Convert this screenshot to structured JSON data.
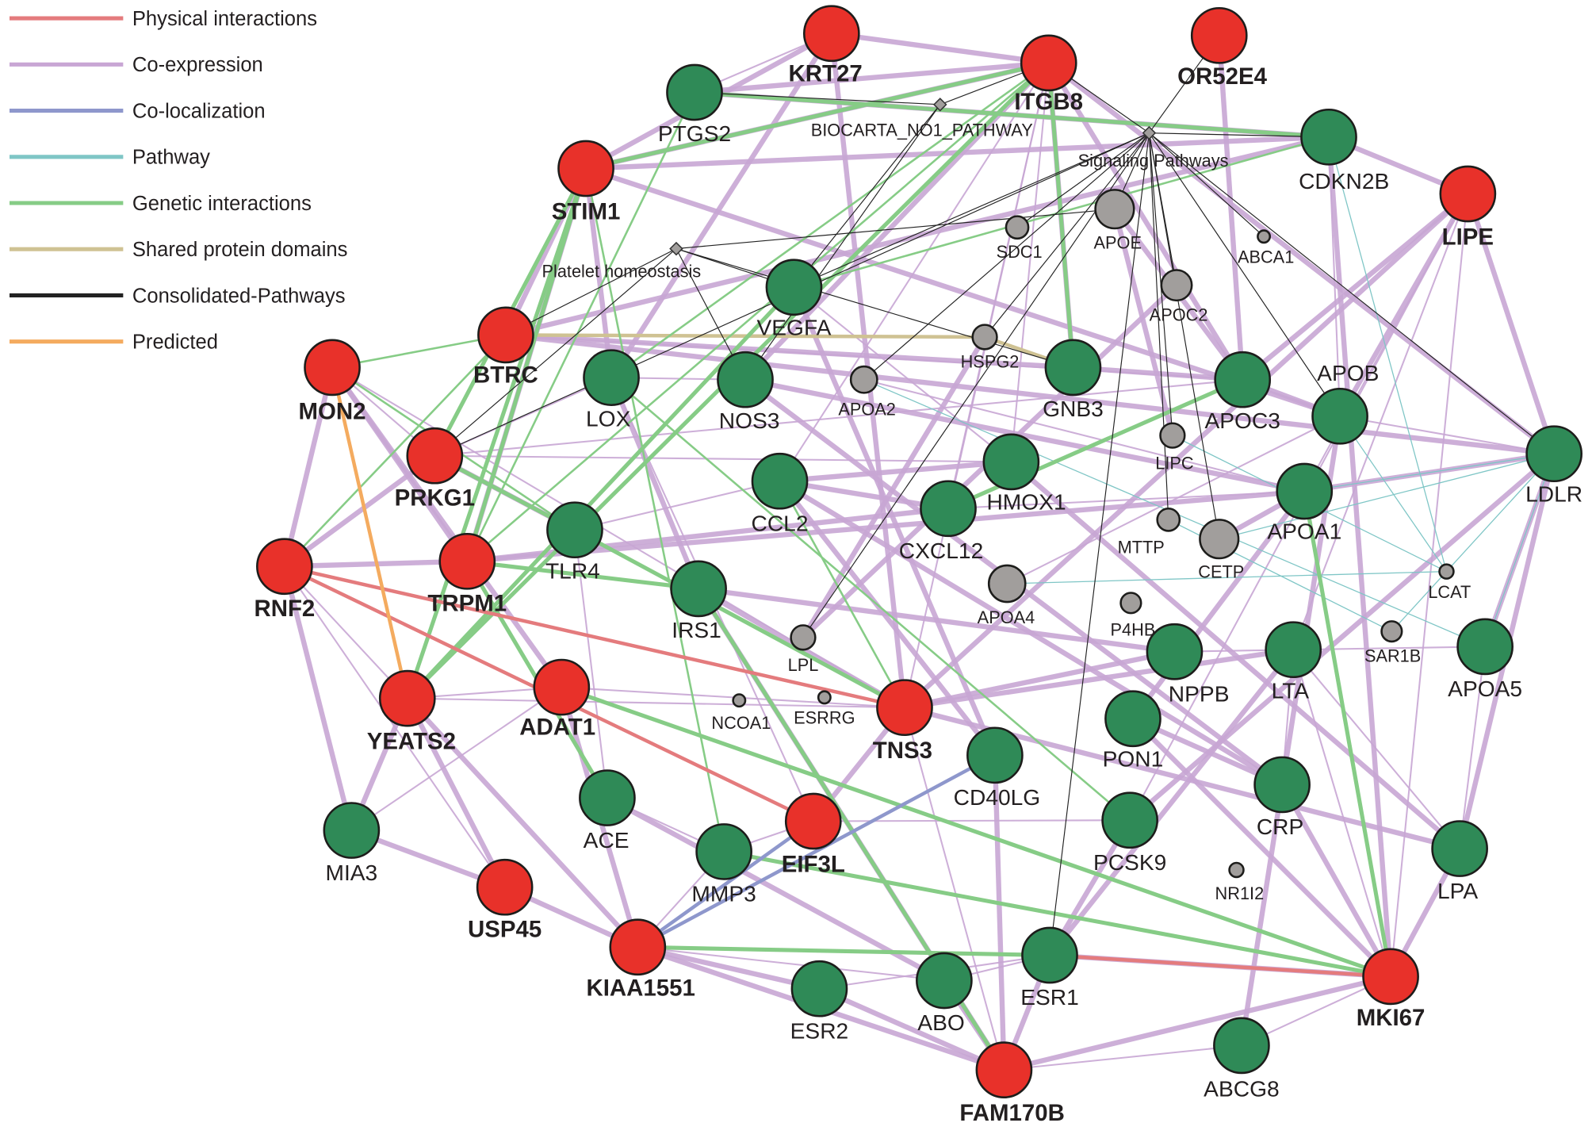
{
  "legend": [
    {
      "label": "Physical interactions",
      "type": "physical",
      "color": "#e47b7d"
    },
    {
      "label": "Co-expression",
      "type": "coexpression",
      "color": "#c8a6d4"
    },
    {
      "label": "Co-localization",
      "type": "colocalization",
      "color": "#8e97cc"
    },
    {
      "label": "Pathway",
      "type": "pathway",
      "color": "#7fc6c6"
    },
    {
      "label": "Genetic interactions",
      "type": "genetic",
      "color": "#86cc86"
    },
    {
      "label": "Shared protein domains",
      "type": "shared",
      "color": "#cfc293"
    },
    {
      "label": "Consolidated-Pathways",
      "type": "consolidated",
      "color": "#222222"
    },
    {
      "label": "Predicted",
      "type": "predicted",
      "color": "#f4ab5f"
    }
  ],
  "node_colors": {
    "query": "#e8312a",
    "related": "#2f8a57",
    "attribute": "#a19e9c",
    "pathway": "#a19e9c"
  },
  "nodes": [
    {
      "name": "KRT27",
      "type": "query"
    },
    {
      "name": "ITGB8",
      "type": "query"
    },
    {
      "name": "OR52E4",
      "type": "query"
    },
    {
      "name": "STIM1",
      "type": "query"
    },
    {
      "name": "LIPE",
      "type": "query"
    },
    {
      "name": "BTRC",
      "type": "query"
    },
    {
      "name": "MON2",
      "type": "query"
    },
    {
      "name": "PRKG1",
      "type": "query"
    },
    {
      "name": "TRPM1",
      "type": "query"
    },
    {
      "name": "RNF2",
      "type": "query"
    },
    {
      "name": "YEATS2",
      "type": "query"
    },
    {
      "name": "ADAT1",
      "type": "query"
    },
    {
      "name": "TNS3",
      "type": "query"
    },
    {
      "name": "EIF3L",
      "type": "query"
    },
    {
      "name": "USP45",
      "type": "query"
    },
    {
      "name": "KIAA1551",
      "type": "query"
    },
    {
      "name": "FAM170B",
      "type": "query"
    },
    {
      "name": "MKI67",
      "type": "query"
    },
    {
      "name": "PTGS2",
      "type": "related"
    },
    {
      "name": "CDKN2B",
      "type": "related"
    },
    {
      "name": "VEGFA",
      "type": "related"
    },
    {
      "name": "LOX",
      "type": "related"
    },
    {
      "name": "NOS3",
      "type": "related"
    },
    {
      "name": "GNB3",
      "type": "related"
    },
    {
      "name": "APOC3",
      "type": "related"
    },
    {
      "name": "APOB",
      "type": "related"
    },
    {
      "name": "LDLR",
      "type": "related"
    },
    {
      "name": "HMOX1",
      "type": "related"
    },
    {
      "name": "CCL2",
      "type": "related"
    },
    {
      "name": "CXCL12",
      "type": "related"
    },
    {
      "name": "APOA1",
      "type": "related"
    },
    {
      "name": "TLR4",
      "type": "related"
    },
    {
      "name": "IRS1",
      "type": "related"
    },
    {
      "name": "NPPB",
      "type": "related"
    },
    {
      "name": "LTA",
      "type": "related"
    },
    {
      "name": "APOA5",
      "type": "related"
    },
    {
      "name": "PON1",
      "type": "related"
    },
    {
      "name": "CD40LG",
      "type": "related"
    },
    {
      "name": "CRP",
      "type": "related"
    },
    {
      "name": "PCSK9",
      "type": "related"
    },
    {
      "name": "ACE",
      "type": "related"
    },
    {
      "name": "MIA3",
      "type": "related"
    },
    {
      "name": "MMP3",
      "type": "related"
    },
    {
      "name": "LPA",
      "type": "related"
    },
    {
      "name": "ESR1",
      "type": "related"
    },
    {
      "name": "ABO",
      "type": "related"
    },
    {
      "name": "ESR2",
      "type": "related"
    },
    {
      "name": "ABCG8",
      "type": "related"
    },
    {
      "name": "SDC1",
      "type": "attribute"
    },
    {
      "name": "APOE",
      "type": "attribute"
    },
    {
      "name": "ABCA1",
      "type": "attribute"
    },
    {
      "name": "APOC2",
      "type": "attribute"
    },
    {
      "name": "HSPG2",
      "type": "attribute"
    },
    {
      "name": "APOA2",
      "type": "attribute"
    },
    {
      "name": "LIPC",
      "type": "attribute"
    },
    {
      "name": "MTTP",
      "type": "attribute"
    },
    {
      "name": "CETP",
      "type": "attribute"
    },
    {
      "name": "APOA4",
      "type": "attribute"
    },
    {
      "name": "P4HB",
      "type": "attribute"
    },
    {
      "name": "LCAT",
      "type": "attribute"
    },
    {
      "name": "SAR1B",
      "type": "attribute"
    },
    {
      "name": "LPL",
      "type": "attribute"
    },
    {
      "name": "NCOA1",
      "type": "attribute"
    },
    {
      "name": "ESRRG",
      "type": "attribute"
    },
    {
      "name": "NR1I2",
      "type": "attribute"
    },
    {
      "name": "BIOCARTA_NO1_PATHWAY",
      "type": "pathway"
    },
    {
      "name": "Signaling Pathways",
      "type": "pathway"
    },
    {
      "name": "Platelet homeostasis",
      "type": "pathway"
    }
  ],
  "edges": {
    "coexpression": [
      "KRT27-STIM1",
      "KRT27-PTGS2",
      "KRT27-ITGB8",
      "KRT27-LOX",
      "ITGB8-STIM1",
      "ITGB8-PTGS2",
      "ITGB8-NOS3",
      "ITGB8-CCL2",
      "ITGB8-CXCL12",
      "ITGB8-GNB3",
      "ITGB8-APOC3",
      "ITGB8-HMOX1",
      "ITGB8-TNS3",
      "STIM1-BTRC",
      "STIM1-LOX",
      "STIM1-CDKN2B",
      "STIM1-PRKG1",
      "STIM1-TRPM1",
      "MON2-PRKG1",
      "MON2-RNF2",
      "MON2-TRPM1",
      "MON2-ADAT1",
      "MON2-TNS3",
      "RNF2-YEATS2",
      "RNF2-MIA3",
      "RNF2-PRKG1",
      "RNF2-USP45",
      "RNF2-TRPM1",
      "YEATS2-MIA3",
      "YEATS2-ADAT1",
      "YEATS2-TNS3",
      "YEATS2-USP45",
      "YEATS2-KIAA1551",
      "ADAT1-TNS3",
      "ADAT1-KIAA1551",
      "USP45-KIAA1551",
      "USP45-MIA3",
      "KIAA1551-FAM170B",
      "KIAA1551-ESR2",
      "KIAA1551-ABO",
      "FAM170B-ESR1",
      "FAM170B-ABO",
      "FAM170B-ESR2",
      "FAM170B-ABCG8",
      "FAM170B-MKI67",
      "FAM170B-TNS3",
      "FAM170B-CD40LG",
      "FAM170B-IRS1",
      "MKI67-ABCG8",
      "MKI67-LPA",
      "MKI67-LIPE",
      "MKI67-LTA",
      "MKI67-PON1",
      "MKI67-ESR1",
      "MKI67-CRP",
      "LIPE-APOB",
      "LIPE-LDLR",
      "LIPE-CDKN2B",
      "LIPE-APOA1",
      "LIPE-LTA",
      "LIPE-PCSK9",
      "LIPE-APOC3",
      "LIPE-TNS3",
      "CDKN2B-BTRC",
      "CDKN2B-PTGS2",
      "CDKN2B-APOB",
      "CDKN2B-MKI67",
      "TNS3-NPPB",
      "TNS3-LTA",
      "TNS3-EIF3L",
      "TNS3-CCL2",
      "TNS3-IRS1",
      "TNS3-LPA",
      "TNS3-PRKG1",
      "EIF3L-KIAA1551",
      "EIF3L-MMP3",
      "EIF3L-PCSK9",
      "EIF3L-LOX",
      "PRKG1-APOC3",
      "PRKG1-LOX",
      "PRKG1-HMOX1",
      "PRKG1-TLR4",
      "TRPM1-CXCL12",
      "TRPM1-APOA1",
      "BTRC-LDLR",
      "BTRC-GNB3",
      "BTRC-APOC3",
      "LOX-NOS3",
      "NOS3-APOA1",
      "VEGFA-HMOX1",
      "CCL2-CXCL12",
      "CCL2-HMOX1",
      "CXCL12-APOA1",
      "GNB3-APOC3",
      "APOC3-APOB",
      "APOB-LDLR",
      "APOA1-LDLR",
      "APOA5-LPA",
      "LPA-LTA",
      "PON1-CRP",
      "PCSK9-LDLR",
      "ESR1-ESR2",
      "ESR1-ABO",
      "ESR1-PCSK9",
      "ESR1-LTA",
      "ABO-ACE",
      "ACE-TLR4",
      "MMP3-ACE",
      "MMP3-KIAA1551",
      "MIA3-ADAT1",
      "IRS1-LOX",
      "NPPB-APOA5",
      "ITGB8-LDLR",
      "KRT27-TNS3",
      "STIM1-APOB",
      "OR52E4-APOC3",
      "APOE-APOC3",
      "APOA1-APOA2",
      "APOB-APOA4",
      "LPL-APOC2",
      "CETP-APOA1",
      "LIPC-APOE",
      "HSPG2-LPL",
      "NOS3-CRP",
      "CCL2-CRP",
      "HMOX1-LPA",
      "VEGFA-CD40LG",
      "IRS1-NPPB",
      "TLR4-CCL2",
      "ABCG8-APOB",
      "LDLR-LPA",
      "LDLR-APOA5",
      "CRP-LTA",
      "PON1-APOA1",
      "CD40LG-CCL2"
    ],
    "genetic": [
      "STIM1-PRKG1",
      "STIM1-TRPM1",
      "STIM1-YEATS2",
      "ITGB8-YEATS2",
      "ITGB8-TRPM1",
      "ITGB8-STIM1",
      "PTGS2-TRPM1",
      "CDKN2B-PTGS2",
      "CDKN2B-VEGFA",
      "MON2-BTRC",
      "MON2-TLR4",
      "PRKG1-TLR4",
      "TRPM1-IRS1",
      "YEATS2-VEGFA",
      "RNF2-BTRC",
      "TLR4-TNS3",
      "IRS1-FAM170B",
      "KIAA1551-ESR1",
      "MKI67-APOA1",
      "MMP3-MKI67",
      "TNS3-CCL2",
      "CXCL12-APOC3",
      "ACE-TRPM1",
      "LOX-PCSK9",
      "STIM1-MMP3",
      "ITGB8-LOX",
      "ADAT1-MKI67",
      "ITGB8-GNB3"
    ],
    "physical": [
      "RNF2-TNS3",
      "RNF2-EIF3L",
      "ESR1-MKI67"
    ],
    "colocalization": [
      "KIAA1551-EIF3L",
      "KIAA1551-CD40LG"
    ],
    "predicted": [
      "MON2-YEATS2"
    ],
    "shared": [
      "BTRC-HSPG2",
      "HSPG2-GNB3"
    ],
    "pathway": [
      "APOA1-LDLR",
      "CETP-LDLR",
      "APOA5-LDLR",
      "LCAT-APOB",
      "SAR1B-LDLR",
      "APOA4-LCAT",
      "APOA2-APOA5",
      "CDKN2B-LCAT",
      "LIPC-LCAT",
      "MTTP-SAR1B"
    ],
    "consolidated": [
      "Signaling Pathways-ITGB8",
      "Signaling Pathways-OR52E4",
      "Signaling Pathways-CDKN2B",
      "Signaling Pathways-APOE",
      "Signaling Pathways-SDC1",
      "Signaling Pathways-APOC2",
      "Signaling Pathways-HSPG2",
      "Signaling Pathways-ABCA1",
      "Signaling Pathways-LIPC",
      "Signaling Pathways-CETP",
      "Signaling Pathways-LDLR",
      "Signaling Pathways-VEGFA",
      "Signaling Pathways-MTTP",
      "Signaling Pathways-APOA2",
      "Signaling Pathways-LPL",
      "Signaling Pathways-ESR1",
      "Signaling Pathways-APOB",
      "Signaling Pathways-PRKG1",
      "BIOCARTA_NO1_PATHWAY-ITGB8",
      "BIOCARTA_NO1_PATHWAY-VEGFA",
      "BIOCARTA_NO1_PATHWAY-NOS3",
      "BIOCARTA_NO1_PATHWAY-PTGS2",
      "Platelet homeostasis-BTRC",
      "Platelet homeostasis-PRKG1",
      "Platelet homeostasis-NOS3",
      "Platelet homeostasis-APOE",
      "Platelet homeostasis-GNB3",
      "Platelet homeostasis-VEGFA"
    ]
  }
}
